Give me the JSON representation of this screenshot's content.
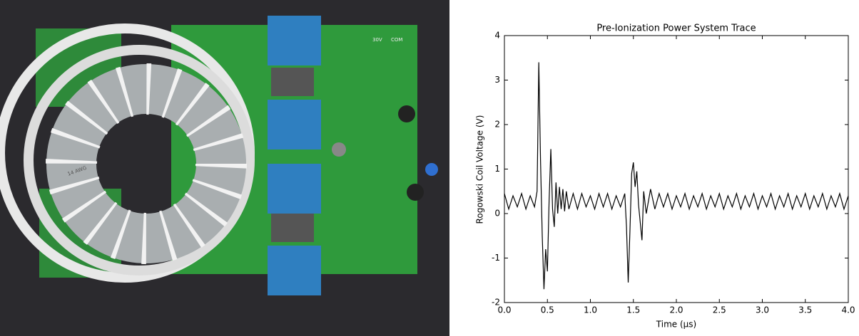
{
  "photo": {
    "labels": [
      "30V",
      "COM",
      "14 AWG"
    ]
  },
  "chart_data": {
    "type": "line",
    "title": "Pre-Ionization Power System Trace",
    "xlabel": "Time (μs)",
    "ylabel": "Rogowski Coil Voltage (V)",
    "color": "#000000",
    "x": [
      0,
      0.05,
      0.1,
      0.15,
      0.2,
      0.25,
      0.3,
      0.35,
      0.38,
      0.4,
      0.42,
      0.44,
      0.46,
      0.48,
      0.5,
      0.52,
      0.54,
      0.56,
      0.58,
      0.6,
      0.62,
      0.64,
      0.66,
      0.68,
      0.7,
      0.72,
      0.75,
      0.8,
      0.85,
      0.9,
      0.95,
      1.0,
      1.05,
      1.1,
      1.15,
      1.2,
      1.25,
      1.3,
      1.35,
      1.4,
      1.42,
      1.44,
      1.46,
      1.48,
      1.5,
      1.52,
      1.54,
      1.56,
      1.58,
      1.6,
      1.62,
      1.65,
      1.7,
      1.75,
      1.8,
      1.85,
      1.9,
      1.95,
      2.0,
      2.05,
      2.1,
      2.15,
      2.2,
      2.25,
      2.3,
      2.35,
      2.4,
      2.45,
      2.5,
      2.55,
      2.6,
      2.65,
      2.7,
      2.75,
      2.8,
      2.85,
      2.9,
      2.95,
      3.0,
      3.05,
      3.1,
      3.15,
      3.2,
      3.25,
      3.3,
      3.35,
      3.4,
      3.45,
      3.5,
      3.55,
      3.6,
      3.65,
      3.7,
      3.75,
      3.8,
      3.85,
      3.9,
      3.95,
      4.0
    ],
    "values": [
      0.45,
      0.1,
      0.4,
      0.15,
      0.45,
      0.1,
      0.4,
      0.15,
      0.5,
      3.4,
      1.2,
      -0.5,
      -1.7,
      -0.8,
      -1.3,
      0.3,
      1.45,
      0.1,
      -0.3,
      0.7,
      0.0,
      0.6,
      0.1,
      0.55,
      0.05,
      0.5,
      0.1,
      0.45,
      0.1,
      0.45,
      0.15,
      0.4,
      0.1,
      0.45,
      0.15,
      0.45,
      0.1,
      0.4,
      0.15,
      0.45,
      -0.3,
      -1.55,
      -0.4,
      0.9,
      1.15,
      0.6,
      0.95,
      0.2,
      -0.2,
      -0.6,
      0.5,
      0.0,
      0.55,
      0.1,
      0.45,
      0.15,
      0.45,
      0.1,
      0.4,
      0.15,
      0.45,
      0.1,
      0.4,
      0.15,
      0.45,
      0.1,
      0.4,
      0.15,
      0.45,
      0.1,
      0.4,
      0.15,
      0.45,
      0.1,
      0.4,
      0.15,
      0.45,
      0.1,
      0.4,
      0.15,
      0.45,
      0.1,
      0.4,
      0.15,
      0.45,
      0.1,
      0.4,
      0.15,
      0.45,
      0.1,
      0.4,
      0.15,
      0.45,
      0.1,
      0.4,
      0.15,
      0.45,
      0.1,
      0.4
    ],
    "xlim": [
      0,
      4
    ],
    "ylim": [
      -2,
      4
    ],
    "xticks": [
      {
        "value": 0,
        "label": "0.0"
      },
      {
        "value": 0.5,
        "label": "0.5"
      },
      {
        "value": 1,
        "label": "1.0"
      },
      {
        "value": 1.5,
        "label": "1.5"
      },
      {
        "value": 2,
        "label": "2.0"
      },
      {
        "value": 2.5,
        "label": "2.5"
      },
      {
        "value": 3,
        "label": "3.0"
      },
      {
        "value": 3.5,
        "label": "3.5"
      },
      {
        "value": 4,
        "label": "4.0"
      }
    ],
    "yticks": [
      -2,
      -1,
      0,
      1,
      2,
      3,
      4
    ],
    "grid": false
  }
}
